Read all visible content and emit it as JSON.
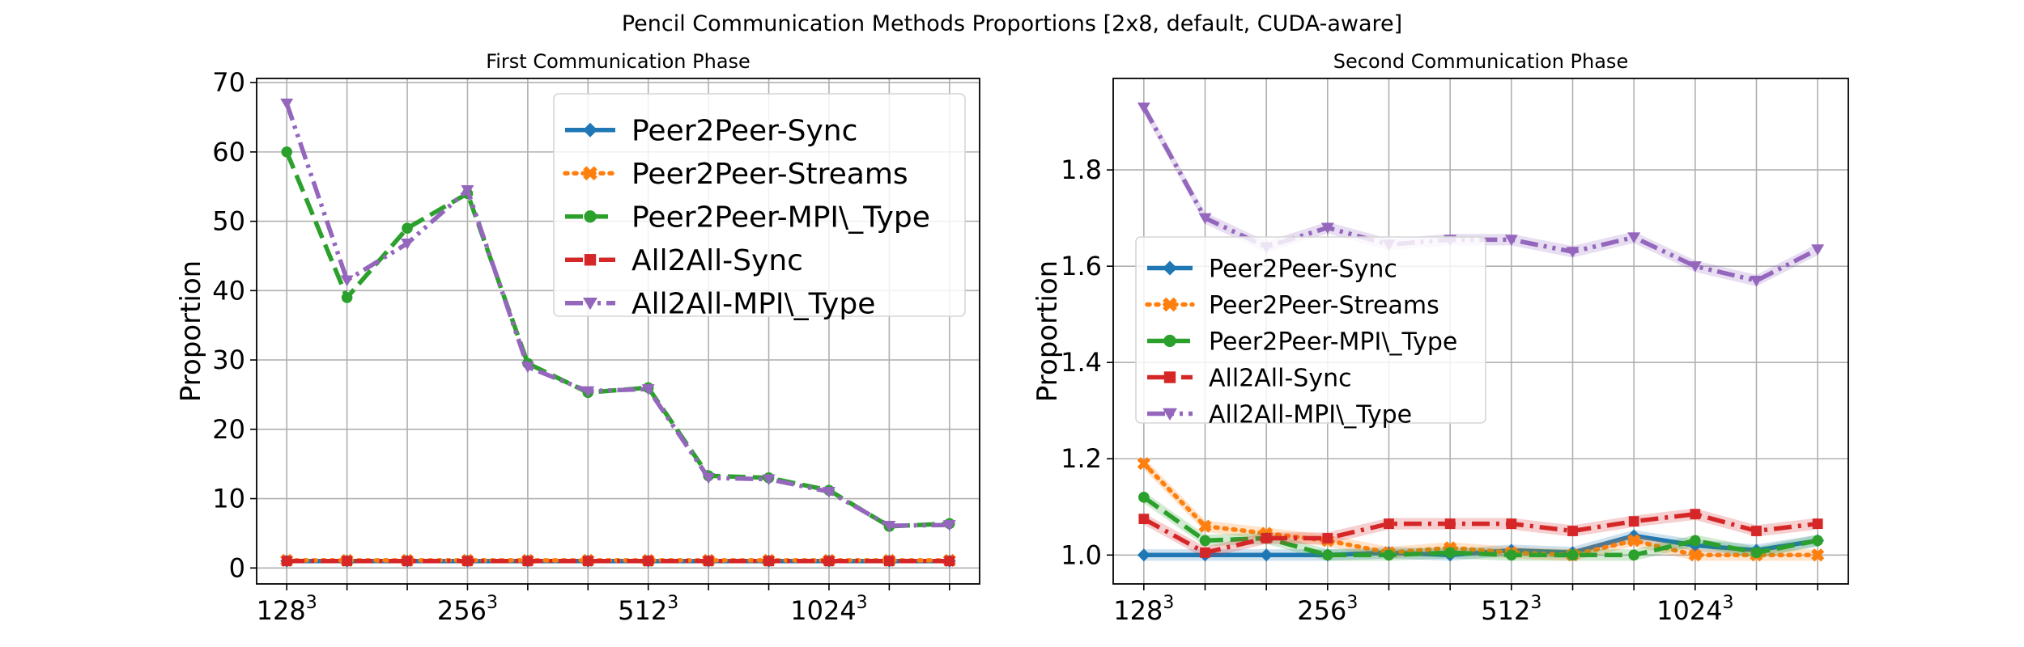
{
  "suptitle": "Pencil Communication Methods Proportions [2x8, default, CUDA-aware]",
  "chart_data": [
    {
      "type": "line",
      "title": "First Communication Phase",
      "xlabel": "",
      "ylabel": "Proportion",
      "x": [
        0,
        1,
        2,
        3,
        4,
        5,
        6,
        7,
        8,
        9,
        10,
        11
      ],
      "xtick_positions": [
        0,
        3,
        6,
        9
      ],
      "xtick_labels": [
        {
          "base": "128",
          "exp": "3"
        },
        {
          "base": "256",
          "exp": "3"
        },
        {
          "base": "512",
          "exp": "3"
        },
        {
          "base": "1024",
          "exp": "3"
        }
      ],
      "ylim": [
        -2.3,
        70.6
      ],
      "yticks": [
        0,
        10,
        20,
        30,
        40,
        50,
        60,
        70
      ],
      "grid": true,
      "legend": "upper right",
      "series": [
        {
          "name": "Peer2Peer-Sync",
          "color": "#1f77b4",
          "dash": "solid",
          "marker": "diamond",
          "values": [
            1,
            1,
            1,
            1,
            1,
            1,
            1,
            1,
            1,
            1,
            1,
            1
          ]
        },
        {
          "name": "Peer2Peer-Streams",
          "color": "#ff7f0e",
          "dash": "dotted",
          "marker": "x",
          "values": [
            1.1,
            1.1,
            1.1,
            1.1,
            1.1,
            1.1,
            1.1,
            1.1,
            1.1,
            1.1,
            1.1,
            1.1
          ]
        },
        {
          "name": "Peer2Peer-MPI\\_Type",
          "color": "#2ca02c",
          "dash": "dashed",
          "marker": "circle",
          "values": [
            60,
            39,
            49,
            54,
            29.5,
            25.3,
            26,
            13.3,
            13,
            11.2,
            6,
            6.4
          ]
        },
        {
          "name": "All2All-Sync",
          "color": "#d62728",
          "dash": "dashdot",
          "marker": "square",
          "values": [
            1,
            1,
            1,
            1,
            1,
            1,
            1,
            1,
            1,
            1,
            1,
            1
          ]
        },
        {
          "name": "All2All-MPI\\_Type",
          "color": "#9467bd",
          "dash": "dashdotdot",
          "marker": "triangle-down",
          "values": [
            67,
            41.5,
            46.8,
            54.5,
            29,
            25.5,
            25.8,
            13,
            12.8,
            11,
            6.1,
            6.2
          ]
        }
      ]
    },
    {
      "type": "line",
      "title": "Second Communication Phase",
      "xlabel": "",
      "ylabel": "Proportion",
      "x": [
        0,
        1,
        2,
        3,
        4,
        5,
        6,
        7,
        8,
        9,
        10,
        11
      ],
      "xtick_positions": [
        0,
        3,
        6,
        9
      ],
      "xtick_labels": [
        {
          "base": "128",
          "exp": "3"
        },
        {
          "base": "256",
          "exp": "3"
        },
        {
          "base": "512",
          "exp": "3"
        },
        {
          "base": "1024",
          "exp": "3"
        }
      ],
      "ylim": [
        0.94,
        1.99
      ],
      "yticks": [
        1.0,
        1.2,
        1.4,
        1.6,
        1.8
      ],
      "grid": true,
      "legend": "center left",
      "series": [
        {
          "name": "Peer2Peer-Sync",
          "color": "#1f77b4",
          "dash": "solid",
          "marker": "diamond",
          "values": [
            1.0,
            1.0,
            1.0,
            1.0,
            1.005,
            1.0,
            1.01,
            1.005,
            1.04,
            1.02,
            1.01,
            1.03
          ]
        },
        {
          "name": "Peer2Peer-Streams",
          "color": "#ff7f0e",
          "dash": "dotted",
          "marker": "x",
          "values": [
            1.19,
            1.06,
            1.045,
            1.03,
            1.005,
            1.015,
            1.005,
            1.0,
            1.03,
            1.0,
            1.0,
            1.0
          ]
        },
        {
          "name": "Peer2Peer-MPI\\_Type",
          "color": "#2ca02c",
          "dash": "dashed",
          "marker": "circle",
          "values": [
            1.12,
            1.03,
            1.035,
            1.0,
            1.0,
            1.005,
            1.0,
            1.0,
            1.0,
            1.03,
            1.005,
            1.03
          ]
        },
        {
          "name": "All2All-Sync",
          "color": "#d62728",
          "dash": "dashdot",
          "marker": "square",
          "values": [
            1.075,
            1.005,
            1.035,
            1.035,
            1.065,
            1.065,
            1.065,
            1.05,
            1.07,
            1.085,
            1.05,
            1.065
          ]
        },
        {
          "name": "All2All-MPI\\_Type",
          "color": "#9467bd",
          "dash": "dashdotdot",
          "marker": "triangle-down",
          "values": [
            1.93,
            1.7,
            1.64,
            1.68,
            1.645,
            1.655,
            1.655,
            1.63,
            1.66,
            1.6,
            1.57,
            1.635
          ]
        }
      ]
    }
  ]
}
